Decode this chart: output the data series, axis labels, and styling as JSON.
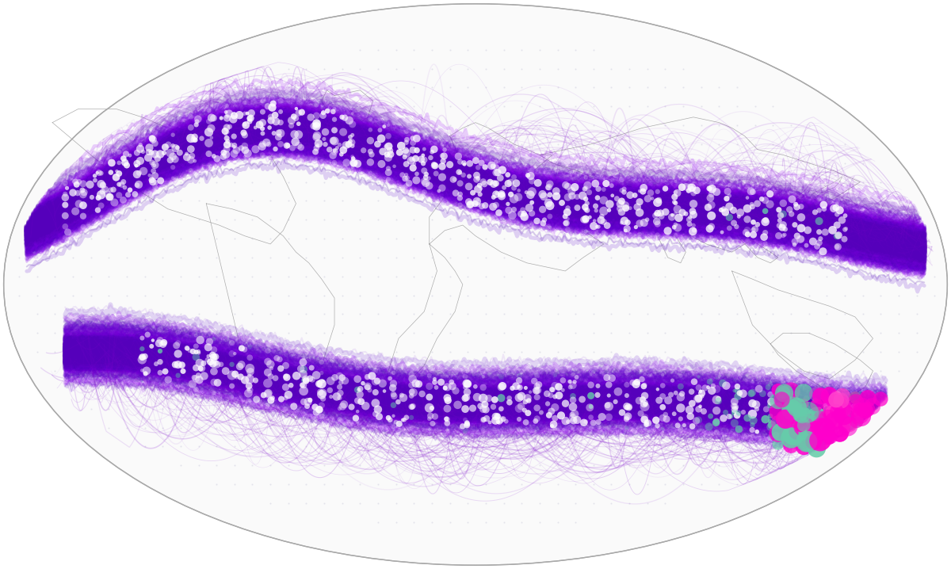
{
  "background_color": "#ffffff",
  "fig_width": 12.0,
  "fig_height": 7.18,
  "dpi": 100,
  "purple_dark": "#4400aa",
  "purple_mid": "#6600cc",
  "purple_bright": "#9900ff",
  "purple_core": "#5500bb",
  "cyan_dot": "#66ccaa",
  "magenta_dot": "#ff00cc",
  "dot_white": "#ffffff",
  "dot_lavender": "#ccaaee",
  "arc_color": "#7700cc",
  "continent_color": "#888888",
  "grid_dot_color": "#bbbbcc"
}
